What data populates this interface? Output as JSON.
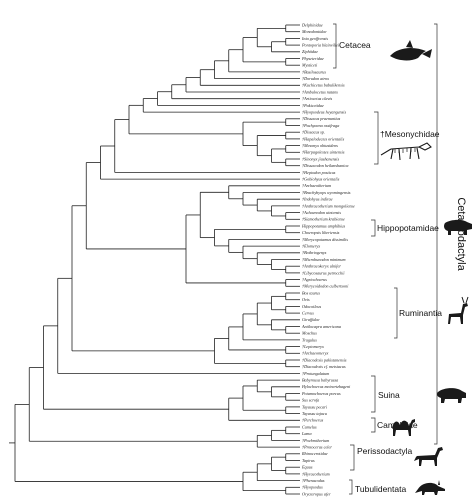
{
  "taxa": [
    "Delphinidae",
    "Monodontidae",
    "Inia geoffrensis",
    "Pontoporia blainvillei",
    "Ziphiidae",
    "Physeteridae",
    "Mysticeti",
    "†Basilosaurus",
    "†Dorudon atrox",
    "†Kuchicetus babulikensis",
    "†Ambulocetus natans",
    "†Artiocetus clavis",
    "†Pakicetidae",
    "†Hyopsodeus heyangensis",
    "†Dissacus praenuntius",
    "†Pachyaena ossifraga",
    "†Dissacus sp.",
    "†Hapalodectes orientalis",
    "†Mesonyx obtusidens",
    "†Harpagolestes uintensis",
    "†Sinonyx jiashanensis",
    "†Dissacodon heilanshanica",
    "†Heptodon posticus",
    "†Gobiohyus orientalis",
    "†Archaeotherium",
    "†Brachyhyops wyomingensis",
    "†Indohyus indirae",
    "†Anthracotherium mongoliense",
    "†Achaenodon uintensis",
    "†Siamotherium krabiense",
    "Hippopotamus amphibius",
    "Choeropsis liberiensis",
    "†Merycopotamus dissimilis",
    "†Elomeryx",
    "†Bothriogenys",
    "†Microbunodon minimum",
    "†Anthracokeryx ulnifer",
    "†Libycosaurus petrocchii",
    "†Agriochoerus",
    "†Merycoidodon culbertsoni",
    "Bos taurus",
    "Ovis",
    "Odocoileus",
    "Cervus",
    "Giraffidae",
    "Antilocapra americana",
    "Moschus",
    "Tragulus",
    "†Leptomeryx",
    "†Archaeomeryx",
    "†Diacodexis pakistanensis",
    "†Diacodexis cf. metsiacus",
    "†Protungulatum",
    "Babyrousa babyrussa",
    "Hylochoerus meinertzhageni",
    "Potamochoerus porcus",
    "Sus scrofa",
    "Tayassu pecari",
    "Tayassu tajacu",
    "†Perchoerus",
    "Camelus",
    "Lama",
    "†Poebrotherium",
    "†Protoceras celer",
    "Rhinocerotidae",
    "Tapirus",
    "Equus",
    "†Hyracotherium",
    "†Phenacodus",
    "†Hyopsodus",
    "Orycteropus afer"
  ],
  "clades": {
    "cetacea": "Cetacea",
    "mesonychidae": "†Mesonychidae",
    "hippopotamidae": "Hippopotamidae",
    "ruminantia": "Ruminantia",
    "suina": "Suina",
    "camelidae": "Camelidae",
    "perissodactyla": "Perissodactyla",
    "tubulidentata": "Tubulidentata"
  },
  "order_label": "Cetartiodactyla",
  "silhouette_icons": [
    "dolphin-icon",
    "mesonychid-skeleton-icon",
    "hippo-icon",
    "deer-icon",
    "pig-icon",
    "camel-icon",
    "horse-icon",
    "aardvark-icon"
  ]
}
